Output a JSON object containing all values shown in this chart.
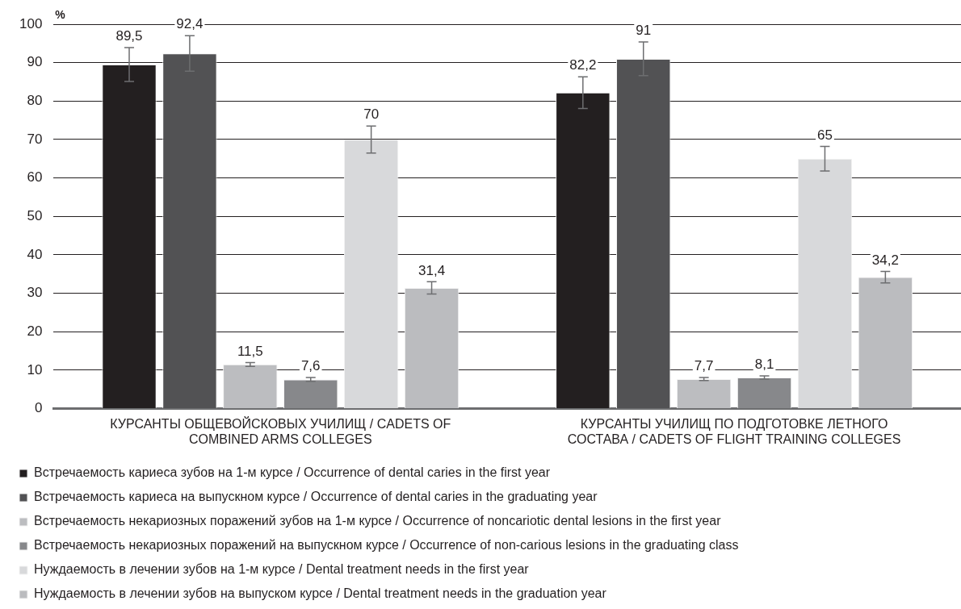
{
  "chart_data": {
    "type": "bar",
    "ylabel": "%",
    "categories": [
      "КУРСАНТЫ ОБЩЕВОЙСКОВЫХ УЧИЛИЩ / CADETS OF COMBINED ARMS COLLEGES",
      "КУРСАНТЫ УЧИЛИЩ ПО ПОДГОТОВКЕ ЛЕТНОГО СОСТАВА / CADETS OF FLIGHT TRAINING COLLEGES"
    ],
    "series": [
      {
        "name": "Встречаемость кариеса зубов на 1-м курсе / Occurrence of dental caries in the first year",
        "color": "#231f20",
        "values": [
          89.5,
          82.2
        ],
        "errors": [
          4.4,
          4.1
        ],
        "value_labels": [
          "89,5",
          "82,2"
        ]
      },
      {
        "name": "Встречаемость кариеса на выпускном курсе / Occurrence of dental caries in the graduating year",
        "color": "#525254",
        "values": [
          92.4,
          91
        ],
        "errors": [
          4.6,
          4.4
        ],
        "value_labels": [
          "92,4",
          "91"
        ]
      },
      {
        "name": "Встречаемость некариозных поражений зубов на 1-м курсе / Occurrence of noncariotic dental lesions in the first year",
        "color": "#bcbdc0",
        "values": [
          11.5,
          7.7
        ],
        "errors": [
          0.5,
          0.4
        ],
        "value_labels": [
          "11,5",
          "7,7"
        ]
      },
      {
        "name": "Встречаемость некариозных поражений на выпускном курсе / Occurrence of non-carious lesions in the graduating class",
        "color": "#87888b",
        "values": [
          7.6,
          8.1
        ],
        "errors": [
          0.5,
          0.4
        ],
        "value_labels": [
          "7,6",
          "8,1"
        ]
      },
      {
        "name": "Нуждаемость в лечении зубов на 1-м курсе / Dental treatment needs in the first year",
        "color": "#d8d9db",
        "values": [
          70,
          65
        ],
        "errors": [
          3.5,
          3.2
        ],
        "value_labels": [
          "70",
          "65"
        ]
      },
      {
        "name": "Нуждаемость в лечении зубов на выпуском курсе / Dental treatment needs in the graduation year",
        "color": "#bbbcbf",
        "values": [
          31.4,
          34.2
        ],
        "errors": [
          1.6,
          1.5
        ],
        "value_labels": [
          "31,4",
          "34,2"
        ]
      }
    ],
    "ylim": [
      0,
      100
    ],
    "yticks": [
      0,
      10,
      20,
      30,
      40,
      50,
      60,
      70,
      80,
      90,
      100
    ],
    "grid": "y",
    "legend": "bottom"
  }
}
